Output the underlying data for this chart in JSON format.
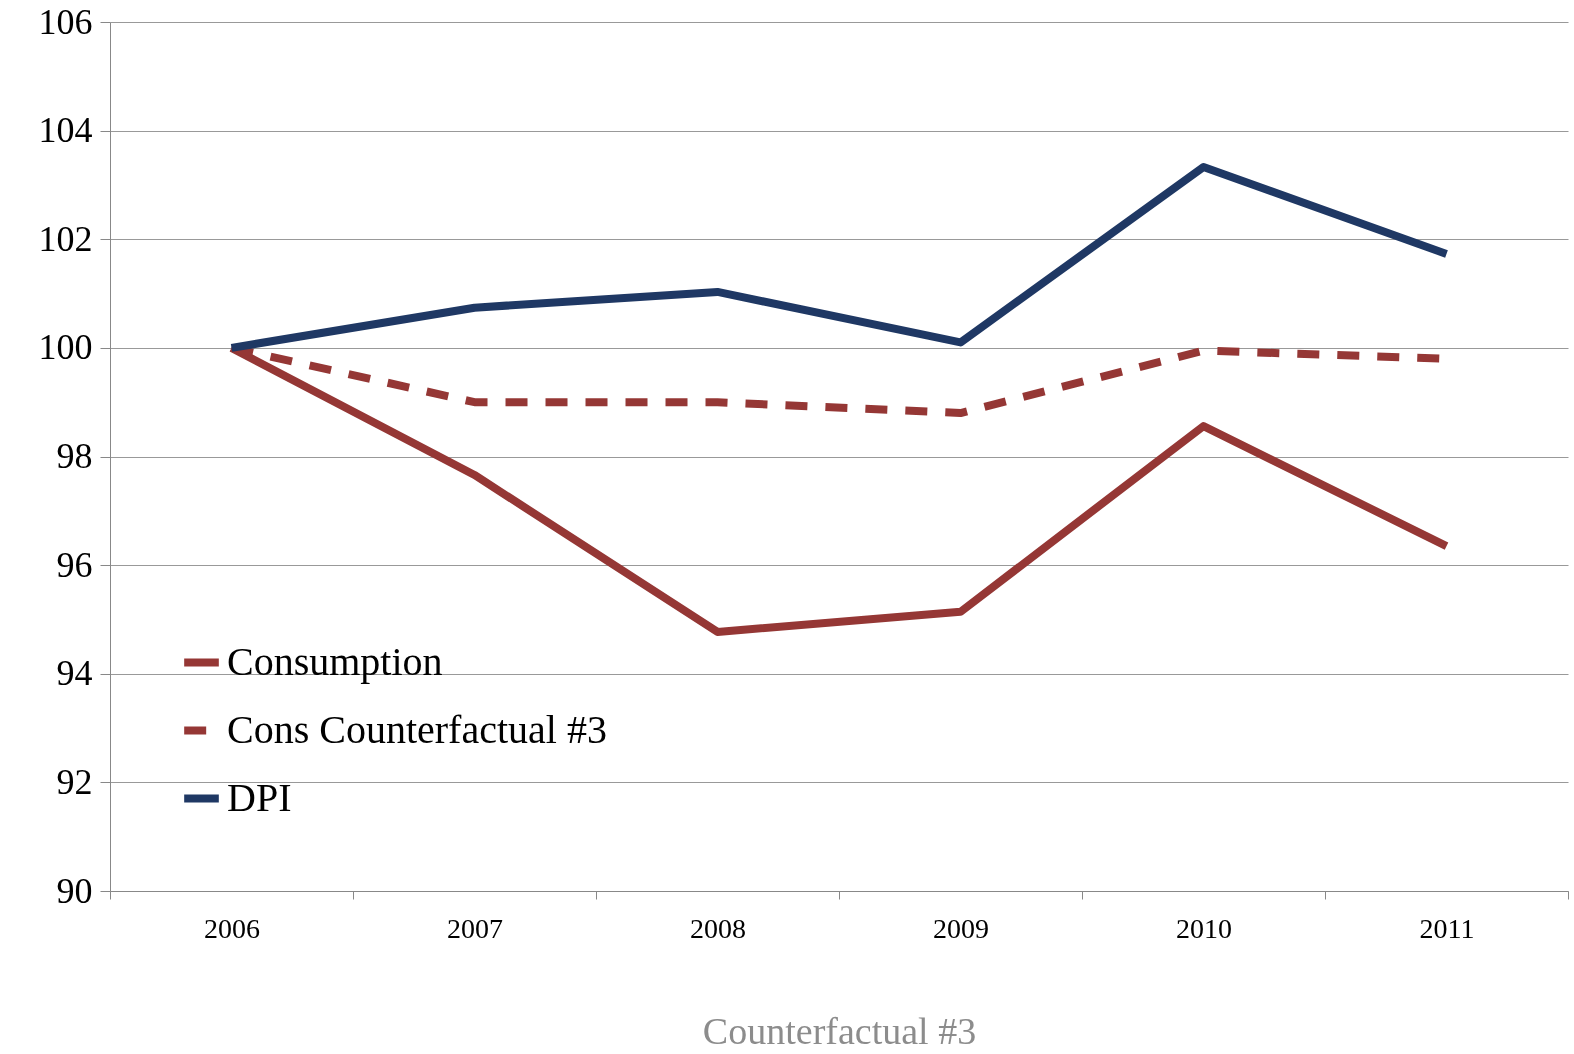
{
  "chart_data": {
    "type": "line",
    "xlabel": "Counterfactual #3",
    "categories": [
      "2006",
      "2007",
      "2008",
      "2009",
      "2010",
      "2011"
    ],
    "series": [
      {
        "name": "Consumption",
        "color": "#953735",
        "line_style": "solid",
        "values": [
          100,
          97.66,
          94.77,
          95.14,
          98.56,
          96.35
        ]
      },
      {
        "name": "Cons Counterfactual #3",
        "color": "#953735",
        "line_style": "dashed",
        "values": [
          100,
          99.0,
          99.0,
          98.8,
          99.95,
          99.8
        ]
      },
      {
        "name": "DPI",
        "color": "#1f3864",
        "line_style": "solid",
        "values": [
          100,
          100.74,
          101.03,
          100.1,
          103.33,
          101.73
        ]
      }
    ],
    "ylim": [
      90,
      106
    ],
    "yticks": [
      90,
      92,
      94,
      96,
      98,
      100,
      102,
      104,
      106
    ],
    "grid": "y",
    "legend": "bottom left",
    "marker": "none"
  }
}
